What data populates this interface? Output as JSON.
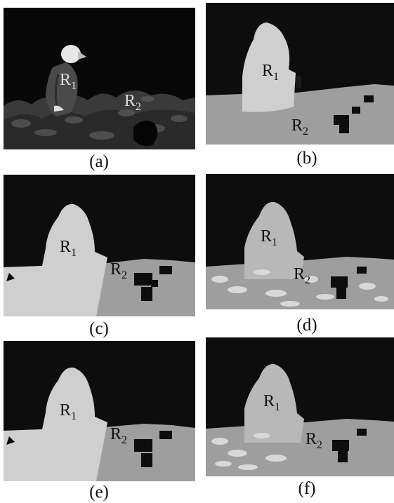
{
  "panels": [
    {
      "id": "a",
      "caption": "(a)",
      "label1": "R",
      "label1_sub": "1",
      "label2": "R",
      "label2_sub": "2"
    },
    {
      "id": "b",
      "caption": "(b)",
      "label1": "R",
      "label1_sub": "1",
      "label2": "R",
      "label2_sub": "2"
    },
    {
      "id": "c",
      "caption": "(c)",
      "label1": "R",
      "label1_sub": "1",
      "label2": "R",
      "label2_sub": "2"
    },
    {
      "id": "d",
      "caption": "(d)",
      "label1": "R",
      "label1_sub": "1",
      "label2": "R",
      "label2_sub": "2"
    },
    {
      "id": "e",
      "caption": "(e)",
      "label1": "R",
      "label1_sub": "1",
      "label2": "R",
      "label2_sub": "2"
    },
    {
      "id": "f",
      "caption": "(f)",
      "label1": "R",
      "label1_sub": "1",
      "label2": "R",
      "label2_sub": "2"
    }
  ],
  "colors": {
    "background": "#0d0d0d",
    "region1": "#cfcfcf",
    "region2": "#9e9e9e",
    "shrub": "#5a5a5a"
  }
}
